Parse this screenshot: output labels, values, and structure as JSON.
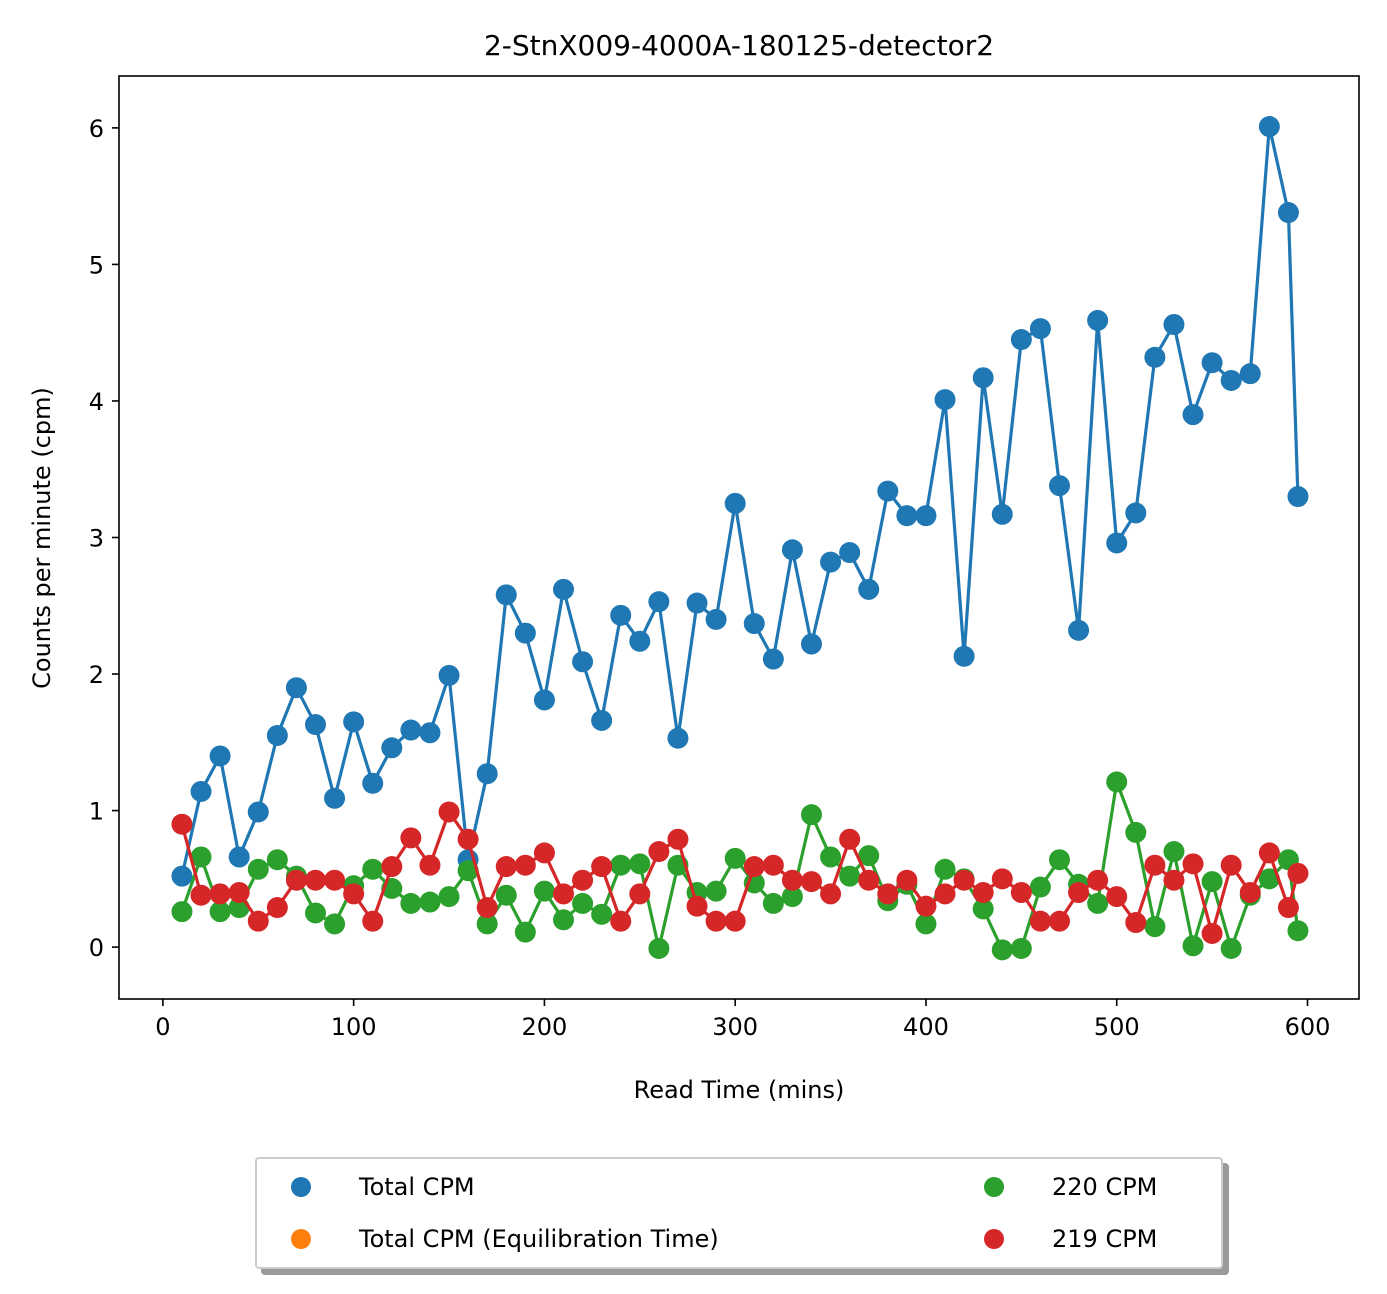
{
  "chart_data": {
    "type": "line",
    "title": "2-StnX009-4000A-180125-detector2",
    "xlabel": "Read Time (mins)",
    "ylabel": "Counts per minute (cpm)",
    "xlim": [
      -23,
      627
    ],
    "ylim": [
      -0.38,
      6.38
    ],
    "xticks": [
      0,
      100,
      200,
      300,
      400,
      500,
      600
    ],
    "yticks": [
      0,
      1,
      2,
      3,
      4,
      5,
      6
    ],
    "grid": false,
    "legend_placement": "below plot, 2 columns",
    "series": [
      {
        "name": "Total CPM",
        "color": "#1f77b4",
        "x": [
          10,
          20,
          30,
          40,
          50,
          60,
          70,
          80,
          90,
          100,
          110,
          120,
          130,
          140,
          150,
          160,
          170,
          180,
          190,
          200,
          210,
          220,
          230,
          240,
          250,
          260,
          270,
          280,
          290,
          300,
          310,
          320,
          330,
          340,
          350,
          360,
          370,
          380,
          390,
          400,
          410,
          420,
          430,
          440,
          450,
          460,
          470,
          480,
          490,
          500,
          510,
          520,
          530,
          540,
          550,
          560,
          570,
          580,
          590,
          595
        ],
        "values": [
          0.52,
          1.14,
          1.4,
          0.66,
          0.99,
          1.55,
          1.9,
          1.63,
          1.09,
          1.65,
          1.2,
          1.46,
          1.59,
          1.57,
          1.99,
          0.64,
          1.27,
          2.58,
          2.3,
          1.81,
          2.62,
          2.09,
          1.66,
          2.43,
          2.24,
          2.53,
          1.53,
          2.52,
          2.4,
          3.25,
          2.37,
          2.11,
          2.91,
          2.22,
          2.82,
          2.89,
          2.62,
          3.34,
          3.16,
          3.16,
          4.01,
          2.13,
          4.17,
          3.17,
          4.45,
          4.53,
          3.38,
          2.32,
          4.59,
          2.96,
          3.18,
          4.32,
          4.56,
          3.9,
          4.28,
          4.15,
          4.2,
          6.01,
          5.38,
          3.3
        ]
      },
      {
        "name": "Total CPM (Equilibration Time)",
        "color": "#ff7f0e",
        "x": [],
        "values": []
      },
      {
        "name": "220 CPM",
        "color": "#2ca02c",
        "x": [
          10,
          20,
          30,
          40,
          50,
          60,
          70,
          80,
          90,
          100,
          110,
          120,
          130,
          140,
          150,
          160,
          170,
          180,
          190,
          200,
          210,
          220,
          230,
          240,
          250,
          260,
          270,
          280,
          290,
          300,
          310,
          320,
          330,
          340,
          350,
          360,
          370,
          380,
          390,
          400,
          410,
          420,
          430,
          440,
          450,
          460,
          470,
          480,
          490,
          500,
          510,
          520,
          530,
          540,
          550,
          560,
          570,
          580,
          590,
          595
        ],
        "values": [
          0.26,
          0.66,
          0.26,
          0.29,
          0.57,
          0.64,
          0.52,
          0.25,
          0.17,
          0.45,
          0.57,
          0.43,
          0.32,
          0.33,
          0.37,
          0.56,
          0.17,
          0.38,
          0.11,
          0.41,
          0.2,
          0.32,
          0.24,
          0.6,
          0.61,
          -0.01,
          0.6,
          0.4,
          0.41,
          0.65,
          0.47,
          0.32,
          0.37,
          0.97,
          0.66,
          0.52,
          0.67,
          0.34,
          0.46,
          0.17,
          0.57,
          0.5,
          0.28,
          -0.02,
          -0.01,
          0.44,
          0.64,
          0.46,
          0.32,
          1.21,
          0.84,
          0.15,
          0.7,
          0.01,
          0.48,
          -0.01,
          0.38,
          0.5,
          0.64,
          0.12
        ]
      },
      {
        "name": "219 CPM",
        "color": "#d62728",
        "x": [
          10,
          20,
          30,
          40,
          50,
          60,
          70,
          80,
          90,
          100,
          110,
          120,
          130,
          140,
          150,
          160,
          170,
          180,
          190,
          200,
          210,
          220,
          230,
          240,
          250,
          260,
          270,
          280,
          290,
          300,
          310,
          320,
          330,
          340,
          350,
          360,
          370,
          380,
          390,
          400,
          410,
          420,
          430,
          440,
          450,
          460,
          470,
          480,
          490,
          500,
          510,
          520,
          530,
          540,
          550,
          560,
          570,
          580,
          590,
          595
        ],
        "values": [
          0.9,
          0.38,
          0.39,
          0.4,
          0.19,
          0.29,
          0.49,
          0.49,
          0.49,
          0.39,
          0.19,
          0.59,
          0.8,
          0.6,
          0.99,
          0.79,
          0.29,
          0.59,
          0.6,
          0.69,
          0.39,
          0.49,
          0.59,
          0.19,
          0.39,
          0.7,
          0.79,
          0.3,
          0.19,
          0.19,
          0.59,
          0.6,
          0.49,
          0.48,
          0.39,
          0.79,
          0.49,
          0.39,
          0.49,
          0.3,
          0.39,
          0.49,
          0.4,
          0.5,
          0.4,
          0.19,
          0.19,
          0.4,
          0.49,
          0.37,
          0.18,
          0.6,
          0.49,
          0.61,
          0.1,
          0.6,
          0.4,
          0.69,
          0.29,
          0.54
        ]
      }
    ]
  }
}
